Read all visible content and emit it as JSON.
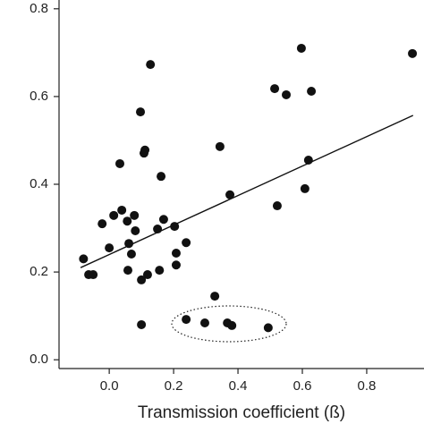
{
  "chart_data": {
    "type": "scatter",
    "x_label": "Transmission coefficient (ß)",
    "xlim": [
      -0.156,
      0.978
    ],
    "ylim": [
      -0.02,
      0.82
    ],
    "xticks": [
      {
        "value": 0,
        "label": "0.0"
      },
      0.2,
      0.4,
      0.6,
      0.8
    ],
    "yticks": [
      {
        "value": 0,
        "label": "0.0"
      },
      0.2,
      0.4,
      0.6,
      0.8
    ],
    "color": "#111111",
    "x": [
      -0.08,
      -0.064,
      -0.05,
      -0.022,
      0,
      0.014,
      0.033,
      0.039,
      0.056,
      0.058,
      0.061,
      0.069,
      0.078,
      0.081,
      0.1,
      0.097,
      0.108,
      0.111,
      0.119,
      0.128,
      0.1,
      0.15,
      0.156,
      0.161,
      0.169,
      0.203,
      0.208,
      0.208,
      0.239,
      0.239,
      0.297,
      0.328,
      0.344,
      0.367,
      0.381,
      0.375,
      0.494,
      0.522,
      0.514,
      0.55,
      0.597,
      0.608,
      0.628,
      0.619,
      0.942
    ],
    "values": [
      0.23,
      0.194,
      0.194,
      0.31,
      0.255,
      0.329,
      0.447,
      0.341,
      0.316,
      0.204,
      0.265,
      0.241,
      0.329,
      0.294,
      0.182,
      0.565,
      0.471,
      0.478,
      0.194,
      0.673,
      0.08,
      0.298,
      0.204,
      0.418,
      0.32,
      0.304,
      0.243,
      0.216,
      0.267,
      0.092,
      0.084,
      0.145,
      0.486,
      0.084,
      0.078,
      0.376,
      0.073,
      0.351,
      0.618,
      0.604,
      0.71,
      0.39,
      0.612,
      0.455,
      0.698
    ],
    "fit": {
      "x": [
        -0.089,
        0.944
      ],
      "values": [
        0.21,
        0.557
      ]
    }
  }
}
